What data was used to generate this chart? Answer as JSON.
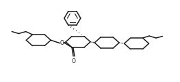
{
  "bg_color": "#ffffff",
  "line_color": "#1a1a1a",
  "line_width": 1.1,
  "figsize": [
    2.63,
    1.21
  ],
  "dpi": 100,
  "xlim": [
    0,
    10.5
  ],
  "ylim": [
    0,
    4.8
  ]
}
